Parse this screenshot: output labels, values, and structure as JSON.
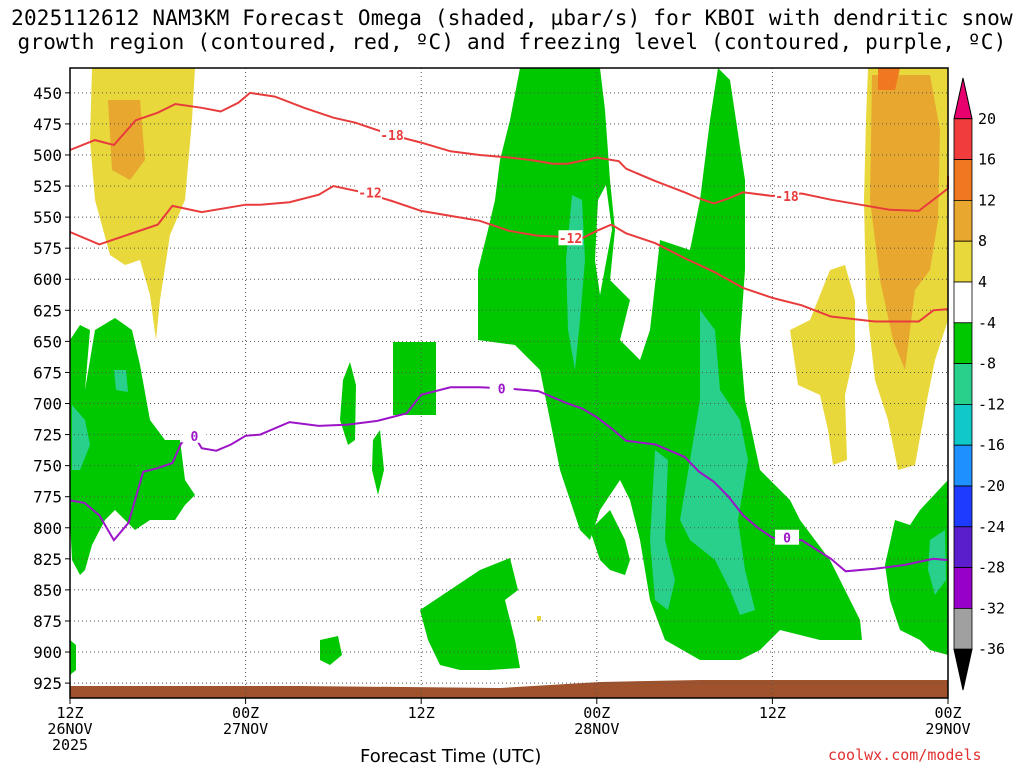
{
  "title_line1": "2025112612 NAM3KM Forecast Omega (shaded, µbar/s) for KBOI with dendritic snow",
  "title_line2": "growth region (contoured, red, ºC) and freezing level (contoured, purple, ºC)",
  "xlabel": "Forecast Time (UTC)",
  "credit": "coolwx.com/models",
  "chart_data": {
    "type": "heatmap",
    "title": "2025112612 NAM3KM Forecast Omega (shaded, µbar/s) for KBOI with dendritic snow growth region (contoured, red, ºC) and freezing level (contoured, purple, ºC)",
    "xlabel": "Forecast Time (UTC)",
    "x_range_hours": [
      0,
      60
    ],
    "y_levels_hPa": [
      450,
      475,
      500,
      525,
      550,
      575,
      600,
      625,
      650,
      675,
      700,
      725,
      750,
      775,
      800,
      825,
      850,
      875,
      900,
      925
    ],
    "ylim_hPa": [
      430,
      937
    ],
    "x_ticks": [
      {
        "hour": 0,
        "lines": [
          "12Z",
          "26NOV",
          "2025"
        ]
      },
      {
        "hour": 12,
        "lines": [
          "00Z",
          "27NOV"
        ]
      },
      {
        "hour": 24,
        "lines": [
          "12Z",
          ""
        ]
      },
      {
        "hour": 36,
        "lines": [
          "00Z",
          "28NOV"
        ]
      },
      {
        "hour": 48,
        "lines": [
          "12Z",
          ""
        ]
      },
      {
        "hour": 60,
        "lines": [
          "00Z",
          "29NOV"
        ]
      }
    ],
    "colorbar": {
      "labels": [
        "20",
        "16",
        "12",
        "8",
        "4",
        "-4",
        "-8",
        "-12",
        "-16",
        "-20",
        "-24",
        "-28",
        "-32",
        "-36"
      ],
      "colors": [
        "#e8006e",
        "#f03c3c",
        "#f07820",
        "#e8a830",
        "#e8d83c",
        "#ffffff",
        "#00c800",
        "#28d08c",
        "#10c8c8",
        "#1e90ff",
        "#1e3cff",
        "#5a1ecc",
        "#9600c8",
        "#a0a0a0",
        "#000000"
      ]
    },
    "series": [
      {
        "name": "-18",
        "color": "#e83c3c",
        "points": [
          [
            0,
            496
          ],
          [
            1.7,
            488
          ],
          [
            3,
            492
          ],
          [
            4.5,
            472
          ],
          [
            6,
            466
          ],
          [
            7.2,
            459
          ],
          [
            9,
            462
          ],
          [
            10.3,
            465
          ],
          [
            11.5,
            458
          ],
          [
            12.3,
            450
          ],
          [
            14,
            453
          ],
          [
            16,
            462
          ],
          [
            18,
            470
          ],
          [
            19.5,
            474
          ],
          [
            22,
            484
          ],
          [
            24,
            490
          ],
          [
            26,
            497
          ],
          [
            28,
            500
          ],
          [
            30,
            502
          ],
          [
            31.5,
            504
          ],
          [
            33,
            507
          ],
          [
            34,
            507
          ],
          [
            36,
            502
          ],
          [
            37.5,
            505
          ],
          [
            38,
            511
          ],
          [
            40,
            521
          ],
          [
            42,
            530
          ],
          [
            43,
            535
          ],
          [
            44,
            539
          ],
          [
            45,
            535
          ],
          [
            46,
            530
          ],
          [
            48,
            533
          ],
          [
            50,
            531
          ],
          [
            52,
            536
          ],
          [
            54,
            540
          ],
          [
            56,
            544
          ],
          [
            58,
            545
          ],
          [
            60,
            527
          ],
          [
            60,
            517
          ]
        ]
      },
      {
        "name": "-12",
        "color": "#e83c3c",
        "points": [
          [
            0,
            562
          ],
          [
            2,
            572
          ],
          [
            4,
            564
          ],
          [
            6,
            556
          ],
          [
            7,
            541
          ],
          [
            9,
            546
          ],
          [
            11,
            542
          ],
          [
            12,
            540
          ],
          [
            13,
            540
          ],
          [
            15,
            538
          ],
          [
            17,
            532
          ],
          [
            18,
            525
          ],
          [
            20,
            530
          ],
          [
            22,
            537
          ],
          [
            24,
            545
          ],
          [
            26,
            549
          ],
          [
            28,
            553
          ],
          [
            30,
            561
          ],
          [
            32,
            565
          ],
          [
            34,
            566
          ],
          [
            35,
            567
          ],
          [
            36,
            561
          ],
          [
            37,
            556
          ],
          [
            38,
            563
          ],
          [
            40,
            571
          ],
          [
            42,
            583
          ],
          [
            44,
            594
          ],
          [
            46,
            607
          ],
          [
            48,
            615
          ],
          [
            50,
            621
          ],
          [
            52,
            630
          ],
          [
            55,
            634
          ],
          [
            58,
            634
          ],
          [
            59,
            625
          ],
          [
            60,
            624
          ]
        ]
      },
      {
        "name": "0",
        "color": "#9c14c8",
        "points": [
          [
            0,
            778
          ],
          [
            1,
            780
          ],
          [
            2,
            790
          ],
          [
            3,
            810
          ],
          [
            4,
            796
          ],
          [
            5,
            755
          ],
          [
            6,
            752
          ],
          [
            7,
            748
          ],
          [
            7.6,
            732
          ],
          [
            8.5,
            726
          ],
          [
            9,
            736
          ],
          [
            10,
            738
          ],
          [
            11,
            733
          ],
          [
            12,
            726
          ],
          [
            13,
            725
          ],
          [
            15,
            715
          ],
          [
            17,
            718
          ],
          [
            19,
            717
          ],
          [
            21,
            714
          ],
          [
            23,
            708
          ],
          [
            24,
            693
          ],
          [
            26,
            687
          ],
          [
            28,
            687
          ],
          [
            30,
            688
          ],
          [
            32,
            690
          ],
          [
            33,
            695
          ],
          [
            34,
            700
          ],
          [
            35,
            704
          ],
          [
            36,
            711
          ],
          [
            37,
            720
          ],
          [
            38,
            730
          ],
          [
            40,
            733
          ],
          [
            42,
            743
          ],
          [
            43,
            755
          ],
          [
            44,
            763
          ],
          [
            45,
            775
          ],
          [
            46,
            790
          ],
          [
            47,
            800
          ],
          [
            48,
            808
          ],
          [
            50,
            810
          ],
          [
            52,
            825
          ],
          [
            53,
            835
          ],
          [
            55,
            833
          ],
          [
            57,
            830
          ],
          [
            59,
            825
          ],
          [
            60,
            826
          ]
        ]
      }
    ]
  }
}
